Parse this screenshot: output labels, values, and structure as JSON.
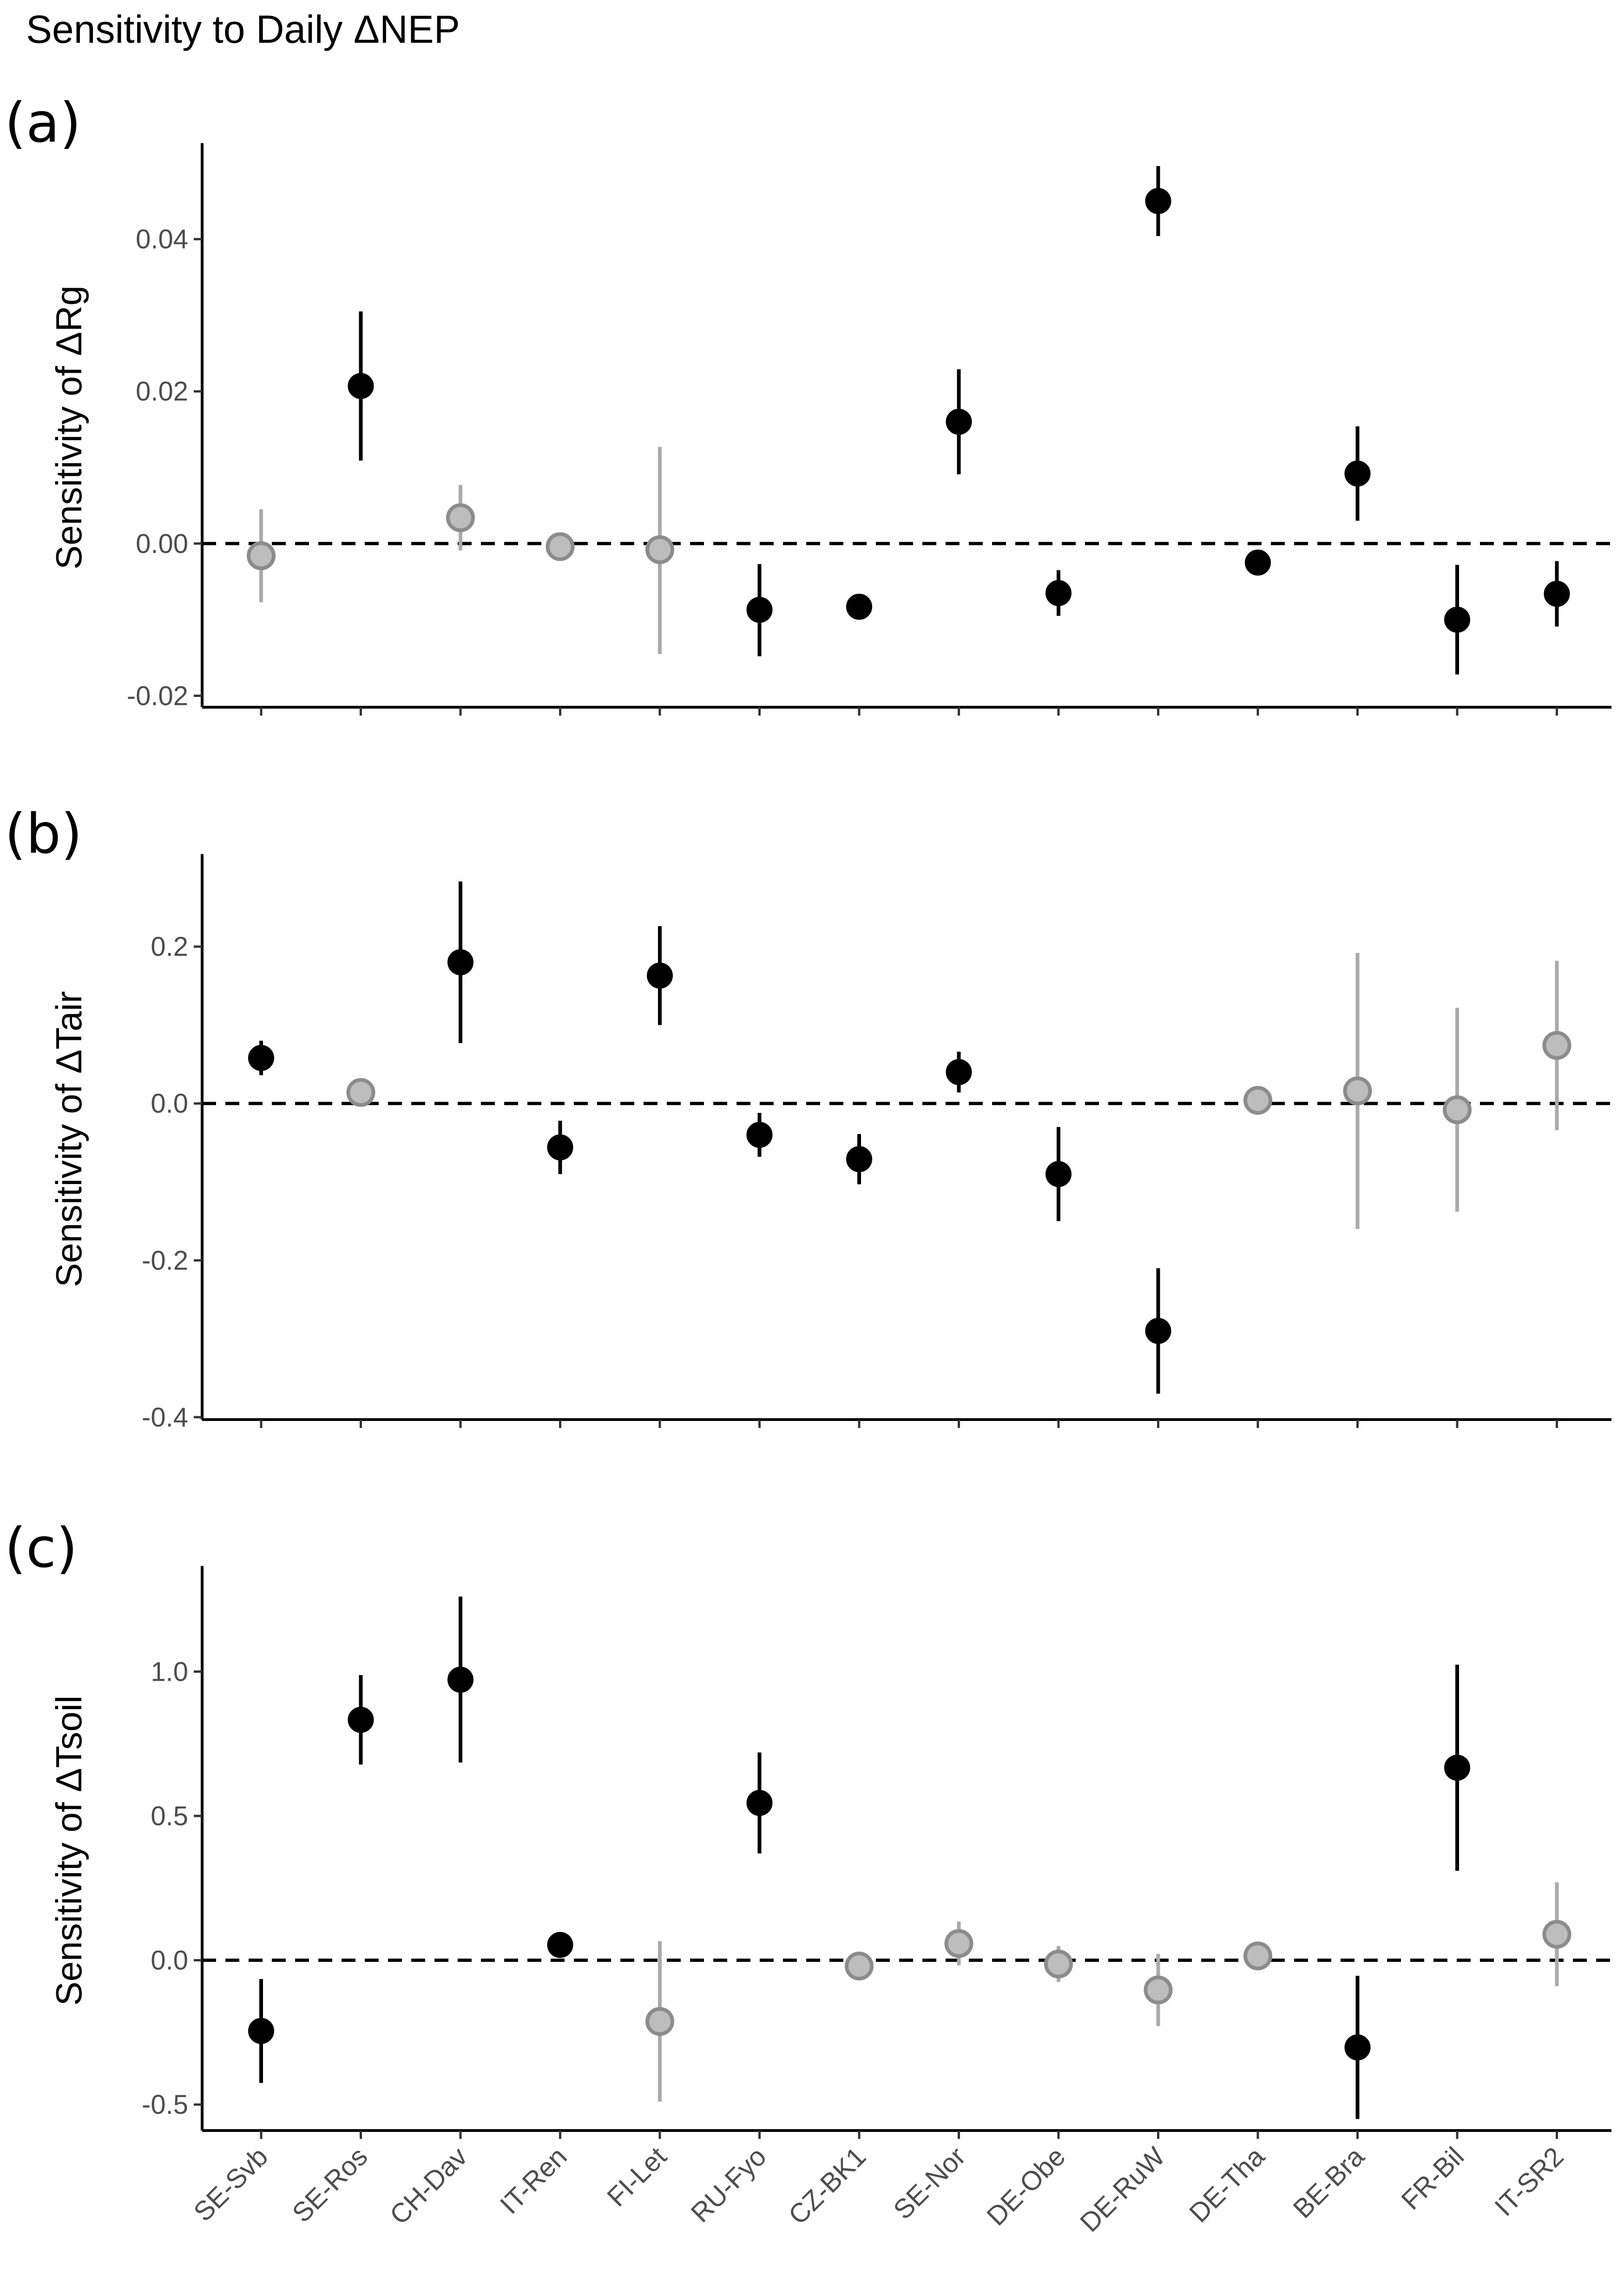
{
  "title": "Sensitivity to Daily ΔNEP",
  "styles": {
    "significant_color": "#000000",
    "nonsignificant_color": "#aaaaaa",
    "nonsignificant_fill": "#bdbdbd",
    "nonsignificant_stroke": "#8c8c8c"
  },
  "chart_data": [
    {
      "type": "scatter",
      "panel_label": "(a)",
      "ylabel": "Sensitivity of ΔRg",
      "xlabel": "",
      "ylim": [
        -0.0215,
        0.052
      ],
      "yticks": [
        -0.02,
        0.0,
        0.02,
        0.04
      ],
      "ytick_labels": [
        "-0.02",
        "0.00",
        "0.02",
        "0.04"
      ],
      "reference_line": 0,
      "categories": [
        "SE-Svb",
        "SE-Ros",
        "CH-Dav",
        "IT-Ren",
        "FI-Let",
        "RU-Fyo",
        "CZ-BK1",
        "SE-Nor",
        "DE-Obe",
        "DE-RuW",
        "DE-Tha",
        "BE-Bra",
        "FR-Bil",
        "IT-SR2"
      ],
      "values": [
        -0.0016,
        0.0207,
        0.0034,
        -0.0004,
        -0.0008,
        -0.0087,
        -0.0083,
        0.016,
        -0.0065,
        0.045,
        -0.0025,
        0.0092,
        -0.01,
        -0.0066
      ],
      "lower": [
        -0.0077,
        0.0109,
        -0.0009,
        -0.0012,
        -0.0145,
        -0.0148,
        -0.0098,
        0.0091,
        -0.0095,
        0.0404,
        -0.0035,
        0.003,
        -0.0172,
        -0.0109
      ],
      "upper": [
        0.0045,
        0.0305,
        0.0077,
        0.0004,
        0.0127,
        -0.0027,
        -0.0068,
        0.0229,
        -0.0035,
        0.0496,
        -0.0015,
        0.0154,
        -0.0028,
        -0.0023
      ],
      "significant": [
        false,
        true,
        false,
        false,
        false,
        true,
        true,
        true,
        true,
        true,
        true,
        true,
        true,
        true
      ]
    },
    {
      "type": "scatter",
      "panel_label": "(b)",
      "ylabel": "Sensitivity of ΔTair",
      "xlabel": "",
      "ylim": [
        -0.403,
        0.312
      ],
      "yticks": [
        -0.4,
        -0.2,
        0.0,
        0.2
      ],
      "ytick_labels": [
        "-0.4",
        "-0.2",
        "0.0",
        "0.2"
      ],
      "reference_line": 0,
      "categories": [
        "SE-Svb",
        "SE-Ros",
        "CH-Dav",
        "IT-Ren",
        "FI-Let",
        "RU-Fyo",
        "CZ-BK1",
        "SE-Nor",
        "DE-Obe",
        "DE-RuW",
        "DE-Tha",
        "BE-Bra",
        "FR-Bil",
        "IT-SR2"
      ],
      "values": [
        0.058,
        0.014,
        0.18,
        -0.056,
        0.163,
        -0.04,
        -0.071,
        0.04,
        -0.09,
        -0.29,
        0.004,
        0.016,
        -0.008,
        0.074
      ],
      "lower": [
        0.036,
        -0.002,
        0.077,
        -0.09,
        0.1,
        -0.068,
        -0.103,
        0.014,
        -0.15,
        -0.37,
        -0.01,
        -0.16,
        -0.138,
        -0.034
      ],
      "upper": [
        0.08,
        0.03,
        0.283,
        -0.022,
        0.226,
        -0.012,
        -0.039,
        0.066,
        -0.03,
        -0.21,
        0.018,
        0.192,
        0.122,
        0.182
      ],
      "significant": [
        true,
        false,
        true,
        true,
        true,
        true,
        true,
        true,
        true,
        true,
        false,
        false,
        false,
        false
      ]
    },
    {
      "type": "scatter",
      "panel_label": "(c)",
      "ylabel": "Sensitivity of ΔTsoil",
      "xlabel": "",
      "ylim": [
        -0.59,
        1.35
      ],
      "yticks": [
        -0.5,
        0.0,
        0.5,
        1.0
      ],
      "ytick_labels": [
        "-0.5",
        "0.0",
        "0.5",
        "1.0"
      ],
      "reference_line": 0,
      "categories": [
        "SE-Svb",
        "SE-Ros",
        "CH-Dav",
        "IT-Ren",
        "FI-Let",
        "RU-Fyo",
        "CZ-BK1",
        "SE-Nor",
        "DE-Obe",
        "DE-RuW",
        "DE-Tha",
        "BE-Bra",
        "FR-Bil",
        "IT-SR2"
      ],
      "values": [
        -0.245,
        0.833,
        0.972,
        0.053,
        -0.212,
        0.545,
        -0.02,
        0.058,
        -0.013,
        -0.103,
        0.015,
        -0.302,
        0.667,
        0.09
      ],
      "lower": [
        -0.425,
        0.678,
        0.685,
        0.038,
        -0.49,
        0.37,
        -0.05,
        -0.018,
        -0.075,
        -0.228,
        0.0,
        -0.55,
        0.31,
        -0.09
      ],
      "upper": [
        -0.065,
        0.988,
        1.26,
        0.068,
        0.066,
        0.72,
        0.01,
        0.134,
        0.049,
        0.022,
        0.03,
        -0.054,
        1.024,
        0.27
      ],
      "significant": [
        true,
        true,
        true,
        true,
        false,
        true,
        false,
        false,
        false,
        false,
        false,
        true,
        true,
        false
      ]
    }
  ]
}
